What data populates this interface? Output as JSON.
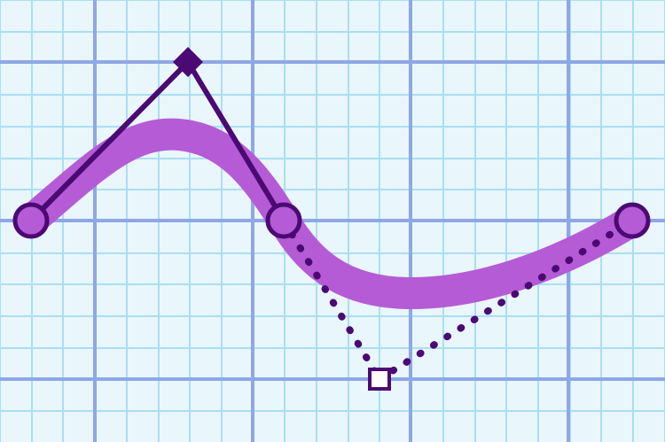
{
  "figure": {
    "description_icons": [
      "anchor-point-icon",
      "diamond-handle-icon",
      "square-handle-icon"
    ],
    "colors": {
      "background": "#e9f6fb",
      "grid_minor": "#a9dff2",
      "grid_major": "#8ea7e6",
      "curve_stroke": "#b55bd6",
      "anchor_fill": "#b55bd6",
      "anchor_stroke": "#4b0a73",
      "handle_line": "#4b0a73",
      "diamond_fill": "#4b0a73",
      "square_fill": "#ffffff",
      "square_stroke": "#4b0a73"
    }
  }
}
